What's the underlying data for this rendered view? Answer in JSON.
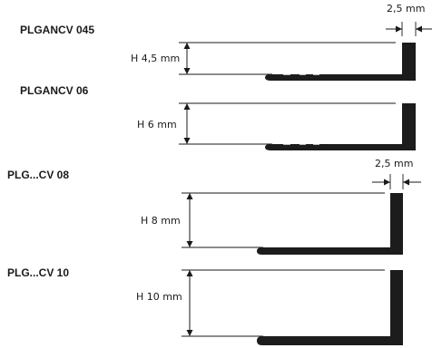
{
  "profiles": [
    {
      "code": "PLGANCV 045",
      "height_label": "H 4,5 mm",
      "height_mm": 4.5,
      "thickness_label": "2,5 mm"
    },
    {
      "code": "PLGANCV 06",
      "height_label": "H 6 mm",
      "height_mm": 6
    },
    {
      "code": "PLG...CV 08",
      "height_label": "H 8 mm",
      "height_mm": 8,
      "thickness_label": "2,5 mm"
    },
    {
      "code": "PLG...CV 10",
      "height_label": "H 10 mm",
      "height_mm": 10
    }
  ],
  "colors": {
    "profile": "#1c1c1c",
    "line": "#1a1a1a",
    "background": "#ffffff"
  }
}
